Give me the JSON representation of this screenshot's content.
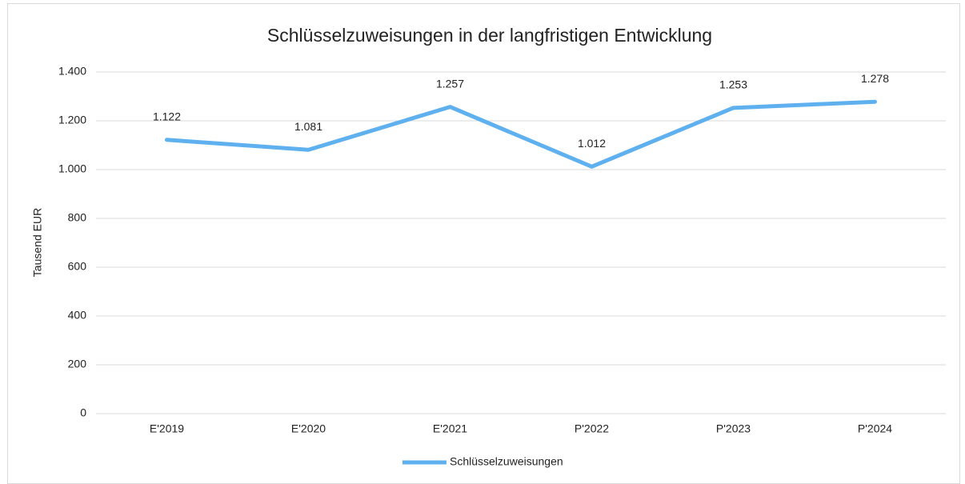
{
  "chart_data": {
    "type": "line",
    "title": "Schlüsselzuweisungen in der langfristigen Entwicklung",
    "y_label": "Tausend EUR",
    "categories": [
      "E'2019",
      "E'2020",
      "E'2021",
      "P'2022",
      "P'2023",
      "P'2024"
    ],
    "series": [
      {
        "name": "Schlüsselzuweisungen",
        "color": "#5fb0ef",
        "values": [
          1122,
          1081,
          1257,
          1012,
          1253,
          1278
        ],
        "value_labels": [
          "1.122",
          "1.081",
          "1.257",
          "1.012",
          "1.253",
          "1.278"
        ]
      }
    ],
    "ylim": [
      0,
      1400
    ],
    "yticks": [
      0,
      200,
      400,
      600,
      800,
      {
        "value": 1000,
        "label": "1.000"
      },
      {
        "value": 1200,
        "label": "1.200"
      },
      {
        "value": 1400,
        "label": "1.400"
      }
    ],
    "grid": true,
    "legend": "bottom"
  }
}
